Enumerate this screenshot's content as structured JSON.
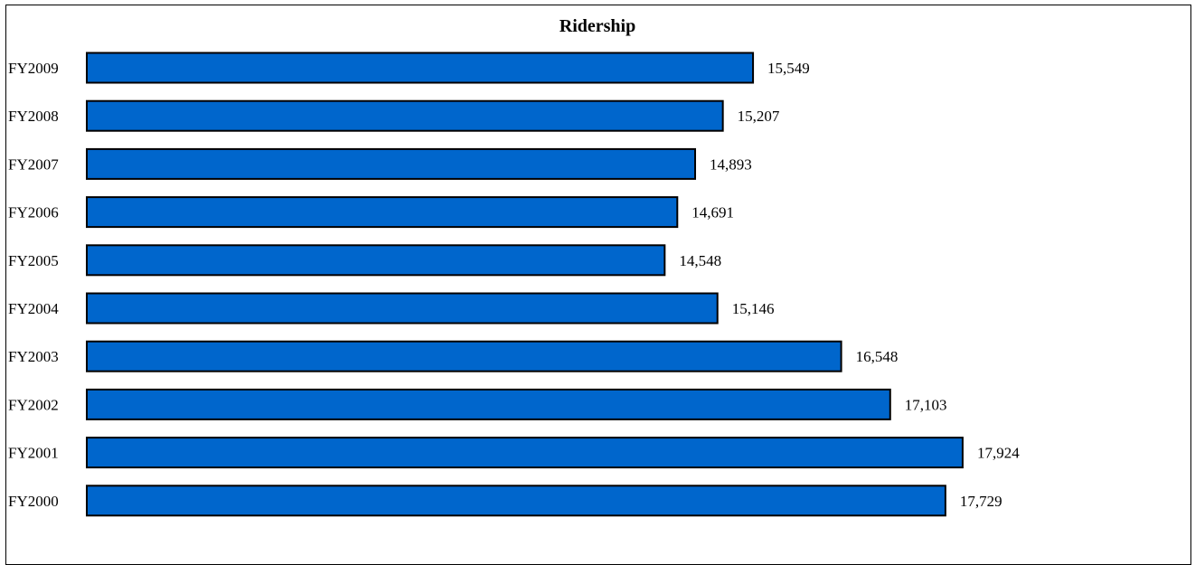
{
  "chart_data": {
    "type": "bar",
    "orientation": "horizontal",
    "title": "Ridership",
    "xlabel": "",
    "ylabel": "",
    "grid": false,
    "legend": "none",
    "categories": [
      "FY2009",
      "FY2008",
      "FY2007",
      "FY2006",
      "FY2005",
      "FY2004",
      "FY2003",
      "FY2002",
      "FY2001",
      "FY2000"
    ],
    "values": [
      15549,
      15207,
      14893,
      14691,
      14548,
      15146,
      16548,
      17103,
      17924,
      17729
    ],
    "value_labels": [
      "15,549",
      "15,207",
      "14,893",
      "14,691",
      "14,548",
      "15,146",
      "16,548",
      "17,103",
      "17,924",
      "17,729"
    ],
    "xlim": [
      8000,
      19000
    ],
    "colors": {
      "bar_fill": "#0066CC",
      "bar_stroke": "#000000"
    }
  }
}
